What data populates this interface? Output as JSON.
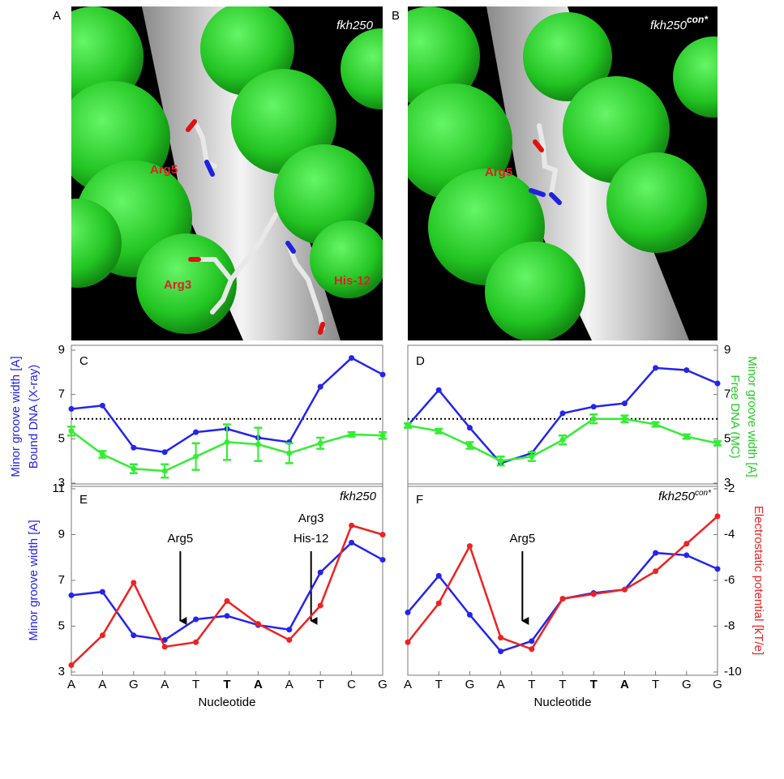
{
  "images": [
    {
      "label": "A",
      "title": "fkh250",
      "residues": [
        "Arg5",
        "Arg3",
        "His-12"
      ]
    },
    {
      "label": "B",
      "title": "fkh250",
      "title_sup": "con*",
      "residues": [
        "Arg5"
      ]
    }
  ],
  "chart_data": [
    {
      "type": "line",
      "panel": "C",
      "ylabel": [
        "Minor groove width [A]",
        "Bound DNA (X-ray)"
      ],
      "ylabel_color": "#2222ee",
      "ylim": [
        3,
        9
      ],
      "yticks": [
        3,
        5,
        7,
        9
      ],
      "reference_line": 5.9,
      "series": [
        {
          "color": "#2424ee",
          "values": [
            6.35,
            6.5,
            4.6,
            4.4,
            5.3,
            5.45,
            5.05,
            4.85,
            7.35,
            8.65,
            7.9
          ]
        },
        {
          "color": "#33ee33",
          "values": [
            5.35,
            4.3,
            3.65,
            3.55,
            4.2,
            4.85,
            4.75,
            4.35,
            4.8,
            5.2,
            5.15
          ],
          "errors": [
            0.2,
            0.15,
            0.2,
            0.3,
            0.6,
            0.8,
            0.75,
            0.45,
            0.25,
            0.1,
            0.15
          ]
        }
      ]
    },
    {
      "type": "line",
      "panel": "D",
      "y2label": [
        "Minor groove width [A]",
        "Free DNA (MC)"
      ],
      "y2label_color": "#22cc22",
      "y2lim": [
        3,
        9
      ],
      "y2ticks": [
        3,
        5,
        7,
        9
      ],
      "reference_line": 5.9,
      "series": [
        {
          "color": "#2424ee",
          "axis": "y2",
          "values": [
            5.6,
            7.2,
            5.5,
            3.9,
            4.35,
            6.15,
            6.45,
            6.6,
            8.2,
            8.1,
            7.5
          ]
        },
        {
          "color": "#33ee33",
          "axis": "y2",
          "values": [
            5.6,
            5.35,
            4.7,
            4.0,
            4.2,
            4.95,
            5.9,
            5.9,
            5.65,
            5.1,
            4.8
          ],
          "errors": [
            0.1,
            0.1,
            0.15,
            0.2,
            0.2,
            0.2,
            0.2,
            0.15,
            0.1,
            0.1,
            0.1
          ]
        }
      ]
    },
    {
      "type": "line",
      "panel": "E",
      "subtitle": "fkh250",
      "ylabel": [
        "Minor groove width [A]"
      ],
      "ylabel_color": "#2222ee",
      "ylim": [
        3,
        11
      ],
      "yticks": [
        3,
        5,
        7,
        9,
        11
      ],
      "y2lim": [
        -10,
        -2
      ],
      "xlabel": "Nucleotide",
      "categories": [
        "A",
        "A",
        "G",
        "A",
        "T",
        "T",
        "A",
        "A",
        "T",
        "C",
        "G"
      ],
      "bold_indices": [
        5,
        6
      ],
      "annotations": [
        {
          "lines": [
            "Arg5"
          ]
        },
        {
          "lines": [
            "Arg3",
            "His-12"
          ]
        }
      ],
      "series": [
        {
          "color": "#2424ee",
          "values": [
            6.35,
            6.5,
            4.6,
            4.4,
            5.3,
            5.45,
            5.05,
            4.85,
            7.35,
            8.65,
            7.9
          ]
        },
        {
          "color": "#ee2222",
          "axis": "y2",
          "values": [
            -9.7,
            -8.4,
            -6.1,
            -8.9,
            -8.7,
            -6.9,
            -7.9,
            -8.6,
            -7.1,
            -3.6,
            -4.0
          ]
        }
      ]
    },
    {
      "type": "line",
      "panel": "F",
      "subtitle": "fkh250",
      "subtitle_sup": "con*",
      "y2label": [
        "Electrostatic potential [kT/e]"
      ],
      "y2label_color": "#ee2222",
      "ylim": [
        3,
        11
      ],
      "y2lim": [
        -10,
        -2
      ],
      "y2ticks": [
        -10,
        -8,
        -6,
        -4,
        -2
      ],
      "xlabel": "Nucleotide",
      "categories": [
        "A",
        "T",
        "G",
        "A",
        "T",
        "T",
        "T",
        "A",
        "T",
        "G",
        "G"
      ],
      "bold_indices": [
        6,
        7
      ],
      "annotations": [
        {
          "lines": [
            "Arg5"
          ]
        }
      ],
      "series": [
        {
          "color": "#2424ee",
          "values": [
            5.6,
            7.2,
            5.5,
            3.9,
            4.35,
            6.2,
            6.45,
            6.6,
            8.2,
            8.1,
            7.5
          ]
        },
        {
          "color": "#ee2222",
          "axis": "y2",
          "values": [
            -8.7,
            -7.0,
            -4.5,
            -8.5,
            -9.0,
            -6.8,
            -6.6,
            -6.4,
            -5.6,
            -4.4,
            -3.2
          ]
        }
      ]
    }
  ]
}
